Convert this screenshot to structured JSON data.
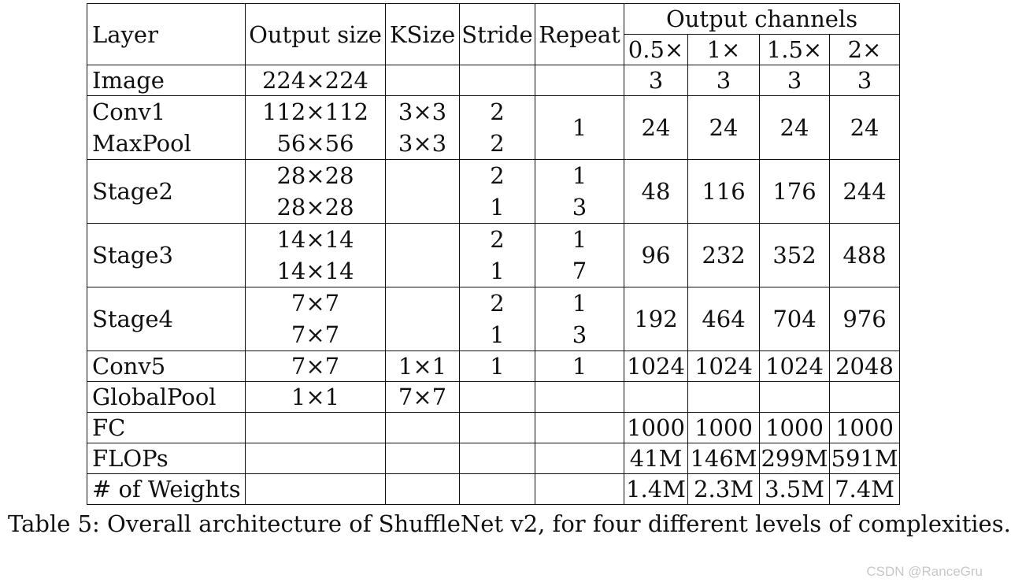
{
  "table": {
    "headers": {
      "layer": "Layer",
      "output_size": "Output size",
      "ksize": "KSize",
      "stride": "Stride",
      "repeat": "Repeat",
      "output_channels": "Output channels",
      "channel_variants": [
        "0.5×",
        "1×",
        "1.5×",
        "2×"
      ]
    },
    "rows": [
      {
        "layer": "Image",
        "sizes": [
          "224×224"
        ],
        "ksizes": [
          ""
        ],
        "strides": [
          ""
        ],
        "repeats": [
          ""
        ],
        "channels": [
          "3",
          "3",
          "3",
          "3"
        ]
      },
      {
        "layer": "Conv1",
        "layer2": "MaxPool",
        "sizes": [
          "112×112",
          "56×56"
        ],
        "ksizes": [
          "3×3",
          "3×3"
        ],
        "strides": [
          "2",
          "2"
        ],
        "repeats": [
          "1"
        ],
        "channels": [
          "24",
          "24",
          "24",
          "24"
        ]
      },
      {
        "layer": "Stage2",
        "sizes": [
          "28×28",
          "28×28"
        ],
        "ksizes": [
          ""
        ],
        "strides": [
          "2",
          "1"
        ],
        "repeats": [
          "1",
          "3"
        ],
        "channels": [
          "48",
          "116",
          "176",
          "244"
        ]
      },
      {
        "layer": "Stage3",
        "sizes": [
          "14×14",
          "14×14"
        ],
        "ksizes": [
          ""
        ],
        "strides": [
          "2",
          "1"
        ],
        "repeats": [
          "1",
          "7"
        ],
        "channels": [
          "96",
          "232",
          "352",
          "488"
        ]
      },
      {
        "layer": "Stage4",
        "sizes": [
          "7×7",
          "7×7"
        ],
        "ksizes": [
          ""
        ],
        "strides": [
          "2",
          "1"
        ],
        "repeats": [
          "1",
          "3"
        ],
        "channels": [
          "192",
          "464",
          "704",
          "976"
        ]
      },
      {
        "layer": "Conv5",
        "sizes": [
          "7×7"
        ],
        "ksizes": [
          "1×1"
        ],
        "strides": [
          "1"
        ],
        "repeats": [
          "1"
        ],
        "channels": [
          "1024",
          "1024",
          "1024",
          "2048"
        ]
      },
      {
        "layer": "GlobalPool",
        "sizes": [
          "1×1"
        ],
        "ksizes": [
          "7×7"
        ],
        "strides": [
          ""
        ],
        "repeats": [
          ""
        ],
        "channels": [
          "",
          "",
          "",
          ""
        ]
      },
      {
        "layer": "FC",
        "sizes": [
          ""
        ],
        "ksizes": [
          ""
        ],
        "strides": [
          ""
        ],
        "repeats": [
          ""
        ],
        "channels": [
          "1000",
          "1000",
          "1000",
          "1000"
        ]
      },
      {
        "layer": "FLOPs",
        "sizes": [
          ""
        ],
        "ksizes": [
          ""
        ],
        "strides": [
          ""
        ],
        "repeats": [
          ""
        ],
        "channels": [
          "41M",
          "146M",
          "299M",
          "591M"
        ]
      },
      {
        "layer": "# of Weights",
        "sizes": [
          ""
        ],
        "ksizes": [
          ""
        ],
        "strides": [
          ""
        ],
        "repeats": [
          ""
        ],
        "channels": [
          "1.4M",
          "2.3M",
          "3.5M",
          "7.4M"
        ]
      }
    ]
  },
  "caption": "Table 5: Overall architecture of ShuffleNet v2, for four different levels of complexities.",
  "watermark": "CSDN @RanceGru"
}
